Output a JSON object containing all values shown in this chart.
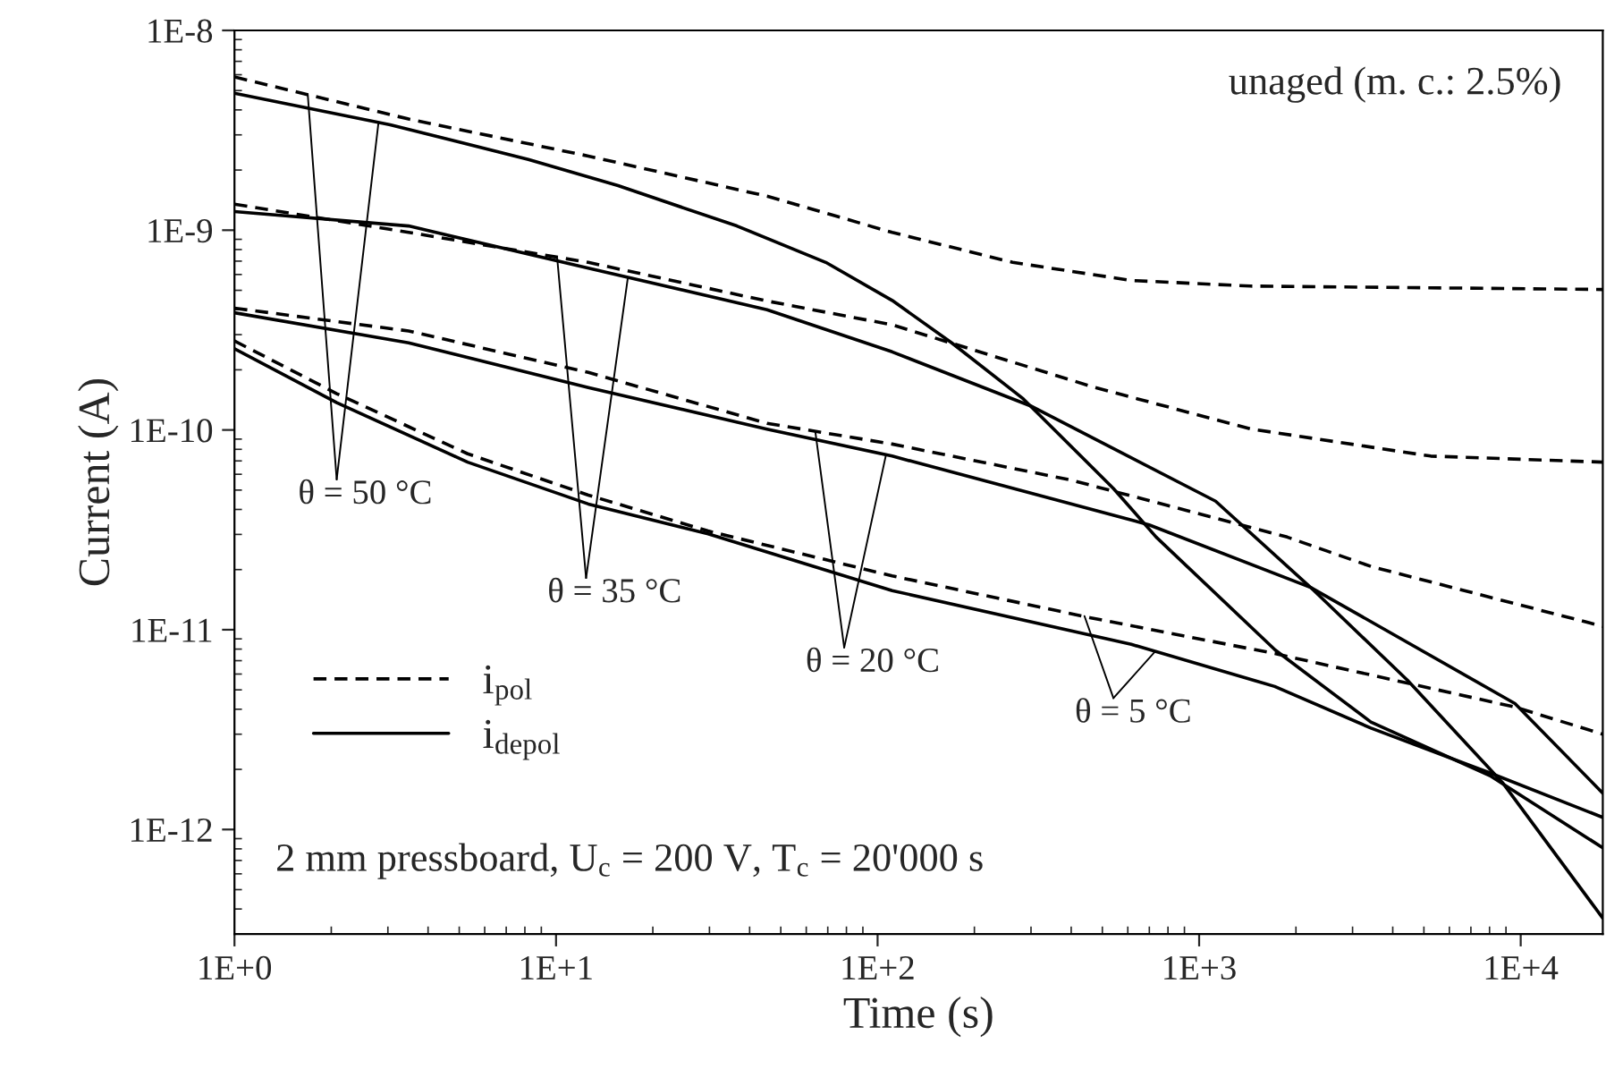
{
  "chart_data": {
    "type": "line",
    "xlabel": "Time (s)",
    "ylabel": "Current (A)",
    "log": "xy",
    "grid": false,
    "legend": "bottom left",
    "xlim": [
      1,
      18000
    ],
    "ylim": [
      3e-13,
      1e-08
    ],
    "xticks": [
      {
        "value": 1,
        "label": "1E+0"
      },
      {
        "value": 10,
        "label": "1E+1"
      },
      {
        "value": 100,
        "label": "1E+2"
      },
      {
        "value": 1000,
        "label": "1E+3"
      },
      {
        "value": 10000,
        "label": "1E+4"
      }
    ],
    "yticks": [
      {
        "value": 1e-12,
        "label": "1E-12"
      },
      {
        "value": 1e-11,
        "label": "1E-11"
      },
      {
        "value": 1e-10,
        "label": "1E-10"
      },
      {
        "value": 1e-09,
        "label": "1E-9"
      },
      {
        "value": 1e-08,
        "label": "1E-8"
      }
    ],
    "series": [
      {
        "name": "i$_{pol}$",
        "color": "#000000",
        "line_style": "dashed",
        "x": [
          1,
          3.48,
          12.6,
          45.3,
          111,
          263,
          617,
          1445,
          18000
        ],
        "values": [
          5.85e-09,
          3.6e-09,
          2.35e-09,
          1.48e-09,
          9.75e-10,
          6.9e-10,
          5.6e-10,
          5.25e-10,
          5.05e-10
        ]
      },
      {
        "name": "i$_{depol}$",
        "color": "#000000",
        "line_style": "solid",
        "x": [
          1,
          3.05,
          8.2,
          15.6,
          36.5,
          69,
          111,
          170,
          284,
          541,
          735,
          1726,
          3420,
          8020,
          18000
        ],
        "values": [
          4.85e-09,
          3.37e-09,
          2.26e-09,
          1.67e-09,
          1.05e-09,
          6.9e-10,
          4.45e-10,
          2.73e-10,
          1.43e-10,
          5.1e-11,
          2.91e-11,
          7.9e-12,
          3.45e-12,
          1.86e-12,
          8.1e-13
        ]
      },
      {
        "color": "#000000",
        "line_style": "dashed",
        "x": [
          1,
          3.48,
          12.6,
          45.3,
          111,
          475,
          1453,
          5250,
          18000
        ],
        "values": [
          1.35e-09,
          9.75e-10,
          6.9e-10,
          4.42e-10,
          3.36e-10,
          1.63e-10,
          1.01e-10,
          7.4e-11,
          6.9e-11
        ]
      },
      {
        "color": "#000000",
        "line_style": "solid",
        "x": [
          1,
          3.48,
          12.6,
          45.3,
          111,
          299,
          1125,
          2220,
          4440,
          8770,
          18000
        ],
        "values": [
          1.24e-09,
          1.05e-09,
          6.45e-10,
          4e-10,
          2.46e-10,
          1.32e-10,
          4.4e-11,
          1.63e-11,
          5.6e-12,
          1.72e-12,
          3.6e-13
        ]
      },
      {
        "color": "#000000",
        "line_style": "dashed",
        "x": [
          1,
          3.48,
          12.6,
          45.3,
          111,
          402,
          1878,
          3435,
          18000
        ],
        "values": [
          4.07e-10,
          3.13e-10,
          1.94e-10,
          1.08e-10,
          8.5e-11,
          5.6e-11,
          2.91e-11,
          2.07e-11,
          1.04e-11
        ]
      },
      {
        "color": "#000000",
        "line_style": "solid",
        "x": [
          1,
          3.48,
          12.6,
          45.3,
          111,
          699,
          2220,
          9600,
          18000
        ],
        "values": [
          3.86e-10,
          2.73e-10,
          1.63e-10,
          1.01e-10,
          7.4e-11,
          3.35e-11,
          1.63e-11,
          4.27e-12,
          1.52e-12
        ]
      },
      {
        "color": "#000000",
        "line_style": "dashed",
        "x": [
          1,
          2.08,
          5.31,
          12.6,
          29.7,
          111,
          457,
          1718,
          9600,
          18000
        ],
        "values": [
          2.79e-10,
          1.52e-10,
          7.6e-11,
          4.72e-11,
          3.12e-11,
          1.86e-11,
          1.15e-11,
          7.6e-12,
          4.1e-12,
          3e-12
        ]
      },
      {
        "color": "#000000",
        "line_style": "solid",
        "x": [
          1,
          2.08,
          5.31,
          12.6,
          29.7,
          111,
          615,
          1718,
          3420,
          8020,
          18000
        ],
        "values": [
          2.55e-10,
          1.37e-10,
          6.9e-11,
          4.26e-11,
          3.02e-11,
          1.57e-11,
          8.45e-12,
          5.2e-12,
          3.22e-12,
          1.92e-12,
          1.15e-12
        ]
      }
    ],
    "annotations": [
      {
        "text": "θ = 50 °C",
        "x": 1.69,
        "y": 4.78e-09
      },
      {
        "text": "θ = 35 °C",
        "x": 10.08,
        "y": 7.3e-10
      },
      {
        "text": "θ = 20 °C",
        "x": 64.0,
        "y": 9.85e-11
      },
      {
        "text": "θ = 5 °C",
        "x": 440,
        "y": 1.17e-11
      },
      "unaged (m. c.: 2.5%)",
      "2 mm pressboard, U$_{c}$ = 200 V, T$_{c}$ = 20'000 s"
    ]
  }
}
